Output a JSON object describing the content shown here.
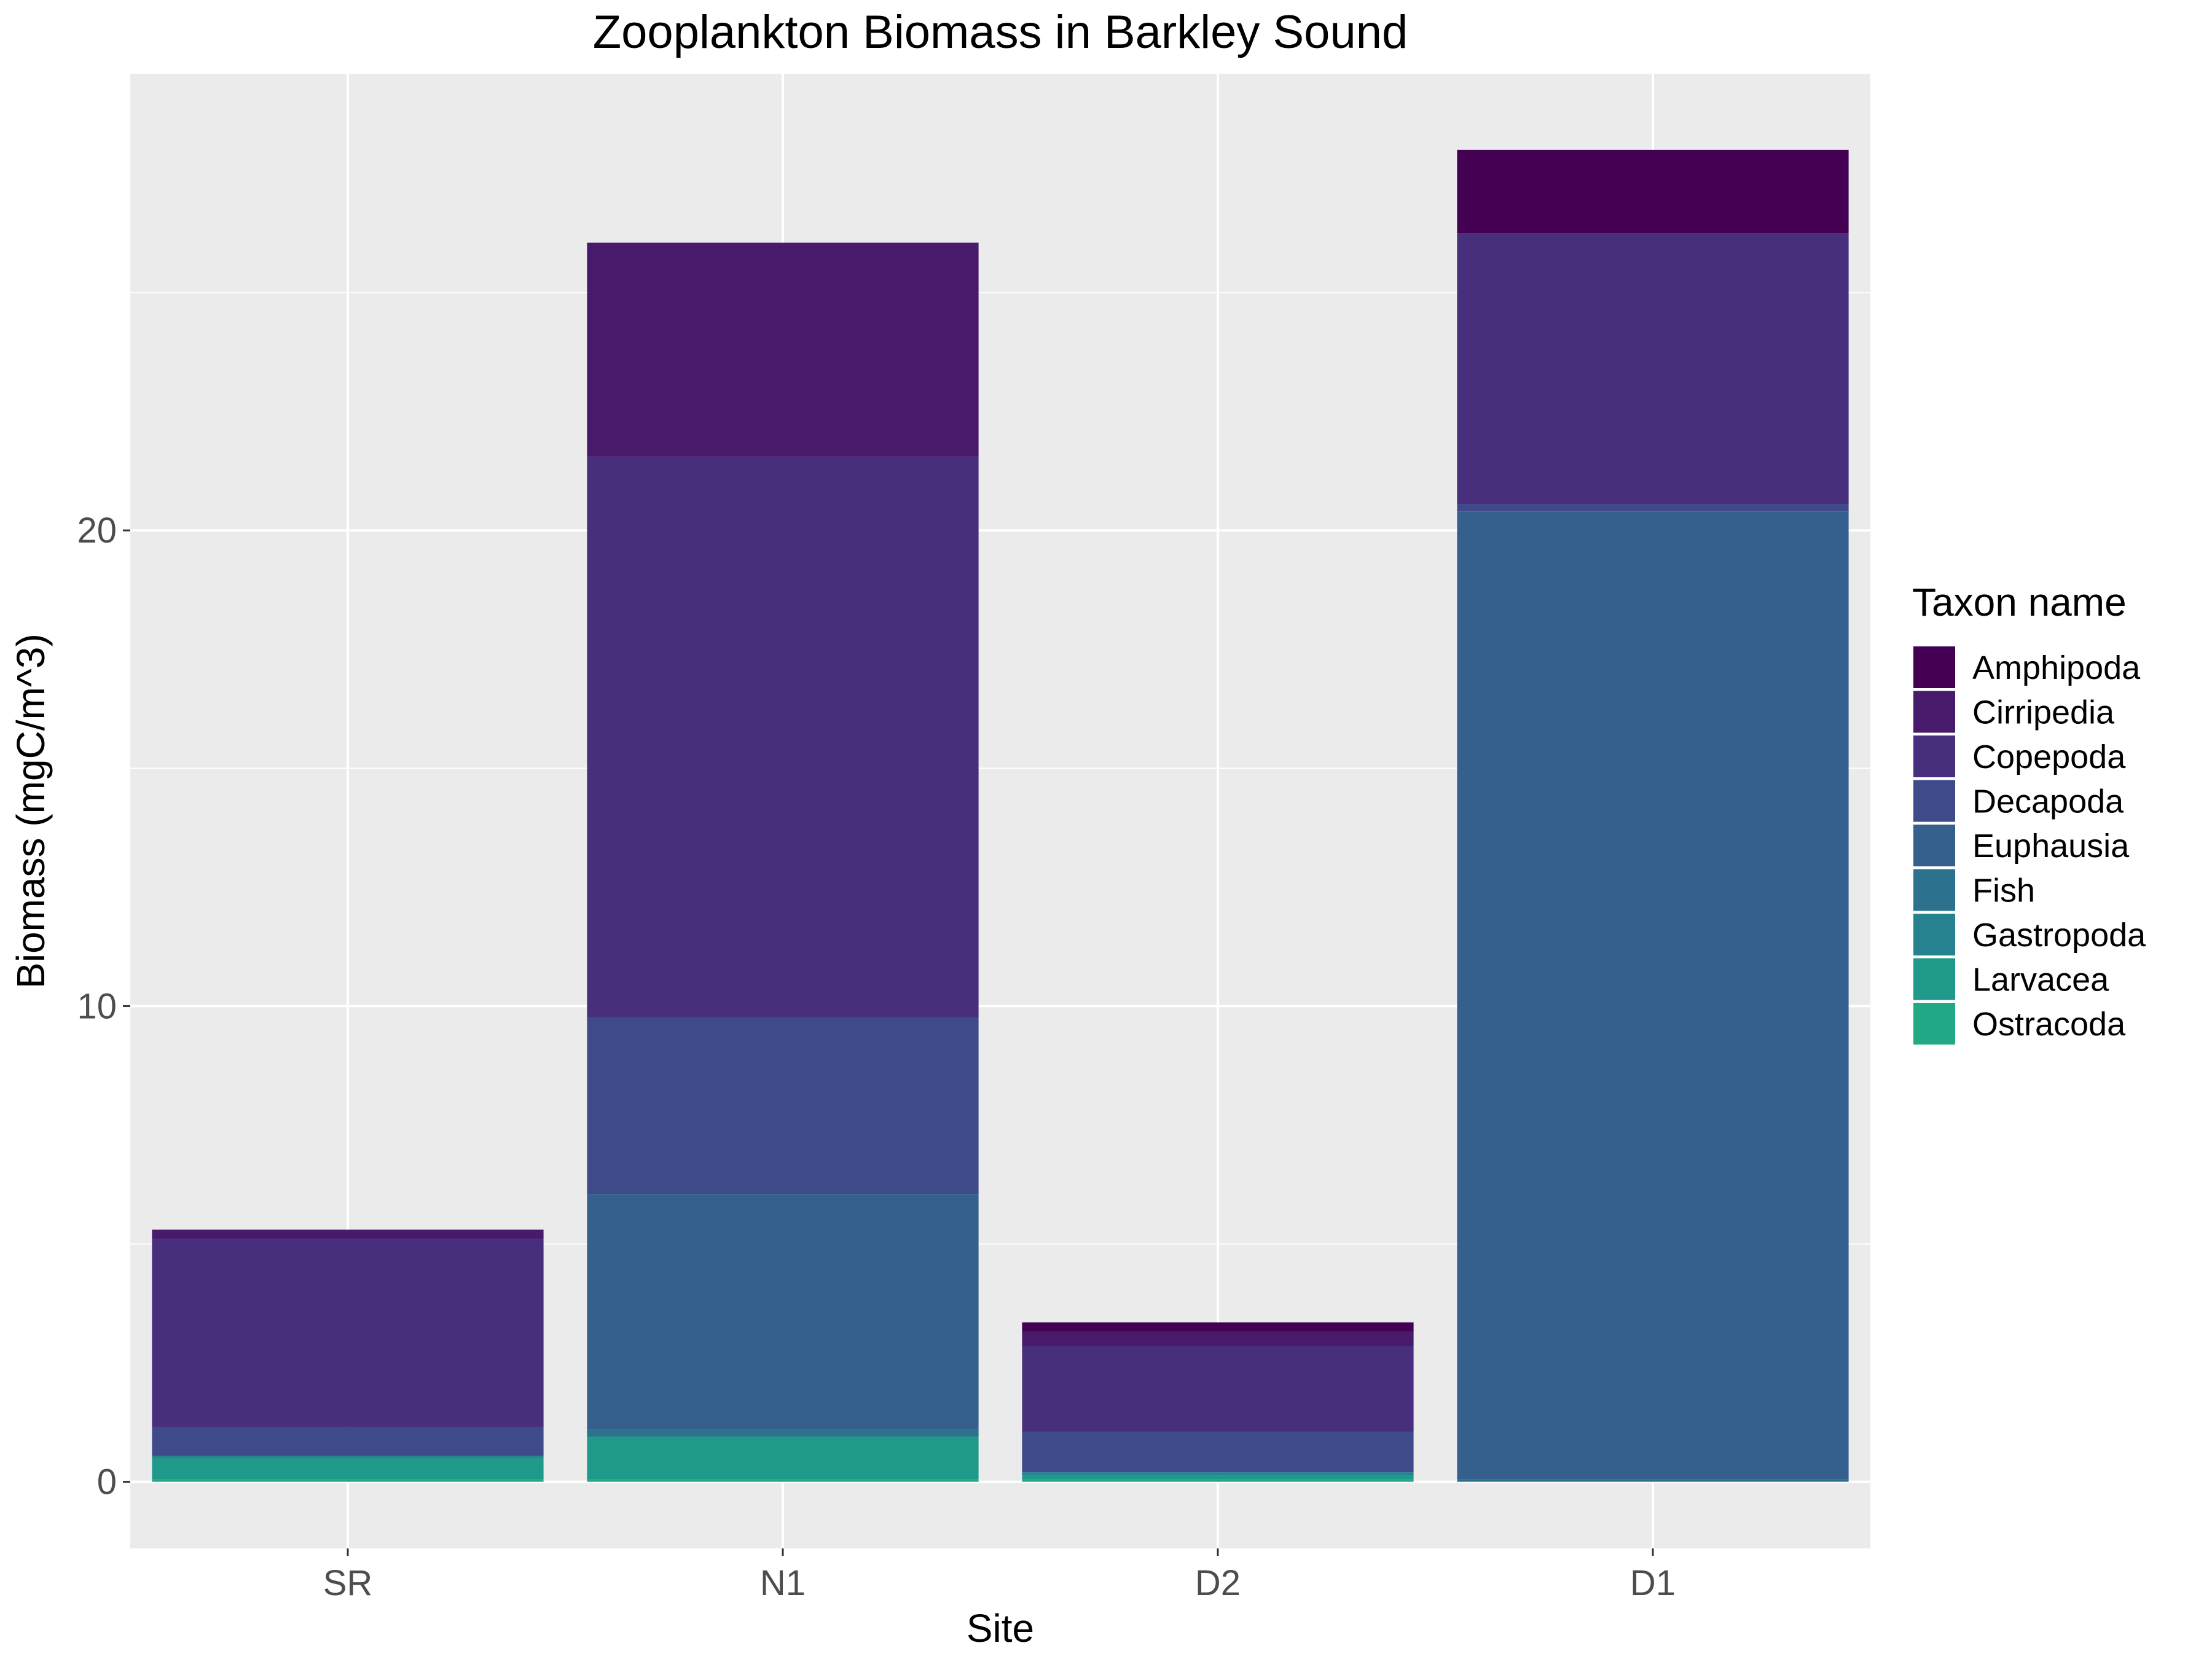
{
  "chart_data": {
    "type": "bar",
    "stacked": true,
    "title": "Zooplankton Biomass in Barkley Sound",
    "xlabel": "Site",
    "ylabel": "Biomass (mgC/m^3)",
    "ylim": [
      -1.4,
      29.6
    ],
    "yticks": [
      0,
      10,
      20
    ],
    "grid": true,
    "legend_position": "right",
    "legend_title": "Taxon name",
    "categories": [
      "SR",
      "N1",
      "D2",
      "D1"
    ],
    "series": [
      {
        "name": "Amphipoda",
        "color": "#440154",
        "values": [
          0.0,
          0.0,
          0.2,
          1.75
        ]
      },
      {
        "name": "Cirripedia",
        "color": "#481a6c",
        "values": [
          0.2,
          4.5,
          0.3,
          0.0
        ]
      },
      {
        "name": "Copepoda",
        "color": "#472f7d",
        "values": [
          3.95,
          11.8,
          1.8,
          5.7
        ]
      },
      {
        "name": "Decapoda",
        "color": "#3e4a89",
        "values": [
          0.6,
          3.7,
          0.85,
          0.15
        ]
      },
      {
        "name": "Euphausia",
        "color": "#35608d",
        "values": [
          0.0,
          4.95,
          0.0,
          20.35
        ]
      },
      {
        "name": "Fish",
        "color": "#2c728e",
        "values": [
          0.0,
          0.15,
          0.0,
          0.05
        ]
      },
      {
        "name": "Gastropoda",
        "color": "#26828e",
        "values": [
          0.05,
          0.0,
          0.05,
          0.0
        ]
      },
      {
        "name": "Larvacea",
        "color": "#1f998a",
        "values": [
          0.45,
          0.9,
          0.1,
          0.0
        ]
      },
      {
        "name": "Ostracoda",
        "color": "#22a884",
        "values": [
          0.05,
          0.05,
          0.05,
          0.0
        ]
      }
    ]
  }
}
